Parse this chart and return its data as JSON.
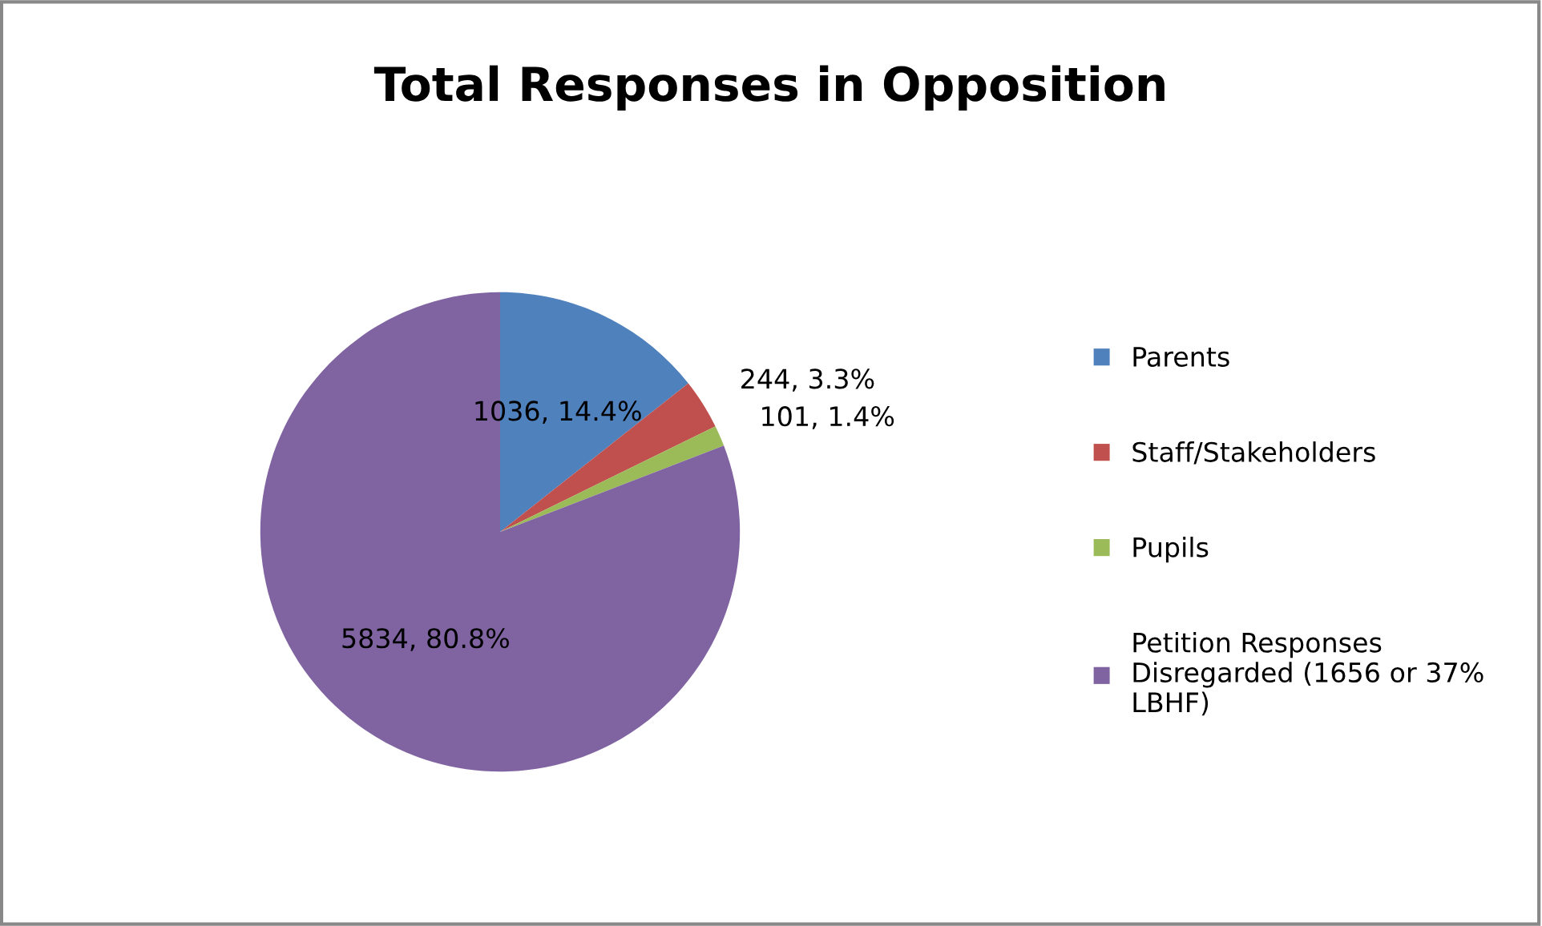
{
  "chart_data": {
    "type": "pie",
    "title": "Total Responses in Opposition",
    "categories": [
      "Parents",
      "Staff/Stakeholders",
      "Pupils",
      "Petition Responses Disregarded (1656 or 37% LBHF)"
    ],
    "values": [
      1036,
      244,
      101,
      5834
    ],
    "value_labels": [
      "1036, 14.4%",
      "244, 3.3%",
      "101, 1.4%",
      "5834, 80.8%"
    ],
    "colors": [
      "#4f81bd",
      "#c0504d",
      "#9bbb59",
      "#8064a2"
    ],
    "legend": "right"
  }
}
